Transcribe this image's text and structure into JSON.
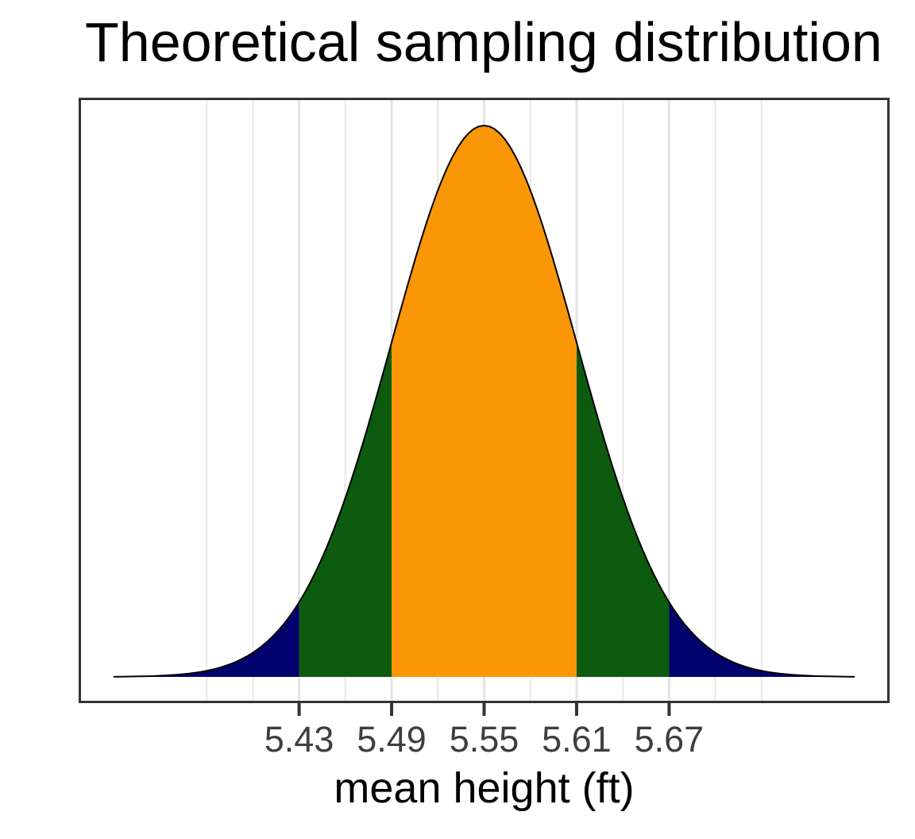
{
  "page": {
    "background_color": "#FFFFFF"
  },
  "chart_data": {
    "type": "area",
    "title": "Theoretical sampling distribution",
    "xlabel": "mean height (ft)",
    "ylabel": "",
    "distribution": {
      "shape": "normal",
      "mean": 5.55,
      "sd": 0.06,
      "curve_draw_range": [
        5.31,
        5.79
      ]
    },
    "x_axis": {
      "range": [
        5.287,
        5.813
      ],
      "tick_values": [
        5.43,
        5.49,
        5.55,
        5.61,
        5.67
      ],
      "tick_labels": [
        "5.43",
        "5.49",
        "5.55",
        "5.61",
        "5.67"
      ],
      "major_gridlines": [
        5.43,
        5.49,
        5.55,
        5.61,
        5.67
      ],
      "minor_gridlines": [
        5.37,
        5.4,
        5.46,
        5.52,
        5.58,
        5.64,
        5.7,
        5.73
      ],
      "grid": "on"
    },
    "y_axis": {
      "visible": false,
      "range_density_fraction": [
        0,
        1.05
      ]
    },
    "regions": [
      {
        "label": "left-tail-beyond-2sd",
        "from": 5.31,
        "to": 5.43,
        "color": "#02026E"
      },
      {
        "label": "1-to-2sd-below-mean",
        "from": 5.43,
        "to": 5.49,
        "color": "#0D5B0E"
      },
      {
        "label": "within-1sd-of-mean",
        "from": 5.49,
        "to": 5.61,
        "color": "#FB9706"
      },
      {
        "label": "1-to-2sd-above-mean",
        "from": 5.61,
        "to": 5.67,
        "color": "#0D5B0E"
      },
      {
        "label": "right-tail-beyond-2sd",
        "from": 5.67,
        "to": 5.79,
        "color": "#02026E"
      }
    ],
    "styles": {
      "curve_color": "#000000",
      "curve_width": 2,
      "panel_background": "#FFFFFF",
      "grid_major_color": "#E2E2E2",
      "grid_minor_color": "#ECECEC",
      "grid_major_width": 3,
      "grid_minor_width": 2.5,
      "border_color": "#333333",
      "tick_mark_color": "#333333",
      "tick_label_color": "#3E3E3E",
      "title_color": "#000000",
      "axis_label_color": "#000000"
    },
    "legend": "none"
  }
}
